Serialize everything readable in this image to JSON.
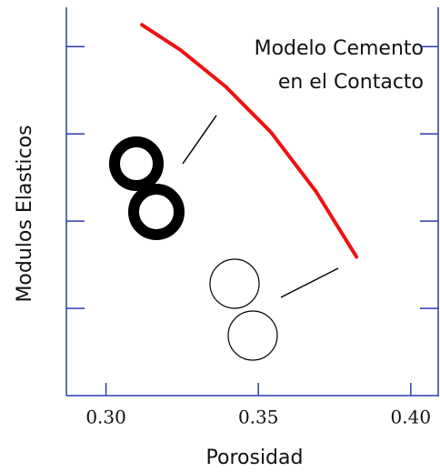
{
  "chart_data": {
    "type": "line",
    "xlabel": "Porosidad",
    "ylabel": "Modulos  Elasticos",
    "annotation": [
      "Modelo Cemento",
      "en el Contacto"
    ],
    "x": [
      0.3118,
      0.3245,
      0.3393,
      0.3541,
      0.3689,
      0.3822
    ],
    "values": [
      4.25,
      3.96,
      3.54,
      3.02,
      2.34,
      1.59
    ],
    "color": "#ee1111",
    "xlim": [
      0.287,
      0.409
    ],
    "ylim": [
      0,
      4.43
    ],
    "xticks": [
      {
        "value": 0.3,
        "label": "0.30"
      },
      {
        "value": 0.35,
        "label": "0.35"
      },
      {
        "value": 0.4,
        "label": "0.40"
      }
    ],
    "yticks": [
      1,
      2,
      3,
      4
    ]
  }
}
